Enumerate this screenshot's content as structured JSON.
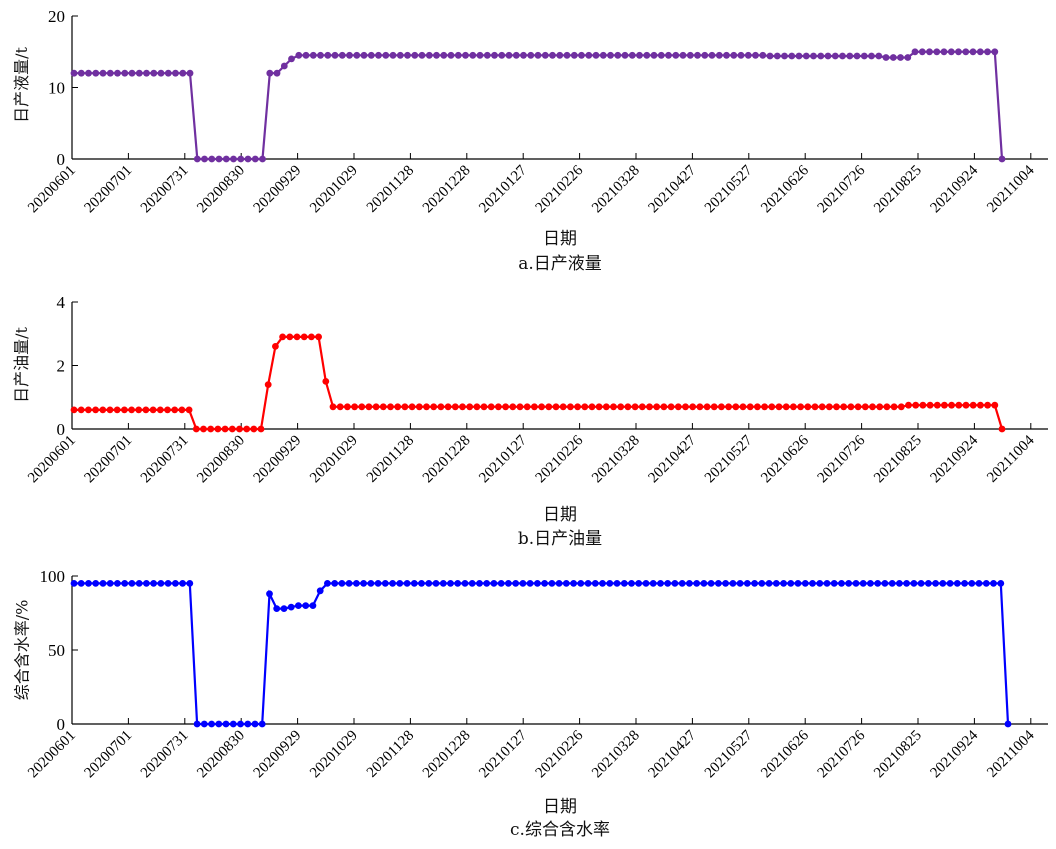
{
  "chart_data": [
    {
      "type": "line",
      "caption": "a.日产液量",
      "xlabel": "日期",
      "ylabel": "日产液量/t",
      "ylim": [
        0,
        20
      ],
      "yticks": [
        0,
        10,
        20
      ],
      "xticks": [
        "20200601",
        "20200701",
        "20200731",
        "20200830",
        "20200929",
        "20201029",
        "20201128",
        "20201228",
        "20210127",
        "20210226",
        "20210328",
        "20210427",
        "20210527",
        "20210626",
        "20210726",
        "20210825",
        "20210924",
        "20211004"
      ],
      "color": "#7030a0",
      "series": [
        {
          "values": [
            12,
            12,
            12,
            12,
            12,
            12,
            12,
            12,
            12,
            12,
            12,
            12,
            12,
            12,
            12,
            12,
            12,
            0,
            0,
            0,
            0,
            0,
            0,
            0,
            0,
            0,
            0,
            12,
            12,
            13,
            14,
            14.5,
            14.5,
            14.5,
            14.5,
            14.5,
            14.5,
            14.5,
            14.5,
            14.5,
            14.5,
            14.5,
            14.5,
            14.5,
            14.5,
            14.5,
            14.5,
            14.5,
            14.5,
            14.5,
            14.5,
            14.5,
            14.5,
            14.5,
            14.5,
            14.5,
            14.5,
            14.5,
            14.5,
            14.5,
            14.5,
            14.5,
            14.5,
            14.5,
            14.5,
            14.5,
            14.5,
            14.5,
            14.5,
            14.5,
            14.5,
            14.5,
            14.5,
            14.5,
            14.5,
            14.5,
            14.5,
            14.5,
            14.5,
            14.5,
            14.5,
            14.5,
            14.5,
            14.5,
            14.5,
            14.5,
            14.5,
            14.5,
            14.5,
            14.5,
            14.5,
            14.5,
            14.5,
            14.5,
            14.5,
            14.5,
            14.4,
            14.4,
            14.4,
            14.4,
            14.4,
            14.4,
            14.4,
            14.4,
            14.4,
            14.4,
            14.4,
            14.4,
            14.4,
            14.4,
            14.4,
            14.4,
            14.2,
            14.2,
            14.2,
            14.2,
            15,
            15,
            15,
            15,
            15,
            15,
            15,
            15,
            15,
            15,
            15,
            15,
            0
          ]
        }
      ]
    },
    {
      "type": "line",
      "caption": "b.日产油量",
      "xlabel": "日期",
      "ylabel": "日产油量/t",
      "ylim": [
        0,
        4
      ],
      "yticks": [
        0,
        2,
        4
      ],
      "xticks": [
        "20200601",
        "20200701",
        "20200731",
        "20200830",
        "20200929",
        "20201029",
        "20201128",
        "20201228",
        "20210127",
        "20210226",
        "20210328",
        "20210427",
        "20210527",
        "20210626",
        "20210726",
        "20210825",
        "20210924",
        "20211004"
      ],
      "color": "#ff0000",
      "series": [
        {
          "values": [
            0.6,
            0.6,
            0.6,
            0.6,
            0.6,
            0.6,
            0.6,
            0.6,
            0.6,
            0.6,
            0.6,
            0.6,
            0.6,
            0.6,
            0.6,
            0.6,
            0.6,
            0,
            0,
            0,
            0,
            0,
            0,
            0,
            0,
            0,
            0,
            1.4,
            2.6,
            2.9,
            2.9,
            2.9,
            2.9,
            2.9,
            2.9,
            1.5,
            0.7,
            0.7,
            0.7,
            0.7,
            0.7,
            0.7,
            0.7,
            0.7,
            0.7,
            0.7,
            0.7,
            0.7,
            0.7,
            0.7,
            0.7,
            0.7,
            0.7,
            0.7,
            0.7,
            0.7,
            0.7,
            0.7,
            0.7,
            0.7,
            0.7,
            0.7,
            0.7,
            0.7,
            0.7,
            0.7,
            0.7,
            0.7,
            0.7,
            0.7,
            0.7,
            0.7,
            0.7,
            0.7,
            0.7,
            0.7,
            0.7,
            0.7,
            0.7,
            0.7,
            0.7,
            0.7,
            0.7,
            0.7,
            0.7,
            0.7,
            0.7,
            0.7,
            0.7,
            0.7,
            0.7,
            0.7,
            0.7,
            0.7,
            0.7,
            0.7,
            0.7,
            0.7,
            0.7,
            0.7,
            0.7,
            0.7,
            0.7,
            0.7,
            0.7,
            0.7,
            0.7,
            0.7,
            0.7,
            0.7,
            0.7,
            0.7,
            0.7,
            0.7,
            0.7,
            0.7,
            0.75,
            0.75,
            0.75,
            0.75,
            0.75,
            0.75,
            0.75,
            0.75,
            0.75,
            0.75,
            0.75,
            0.75,
            0.75,
            0
          ]
        }
      ]
    },
    {
      "type": "line",
      "caption": "c.综合含水率",
      "xlabel": "日期",
      "ylabel": "综合含水率/%",
      "ylim": [
        0,
        100
      ],
      "yticks": [
        0,
        50,
        100
      ],
      "xticks": [
        "20200601",
        "20200701",
        "20200731",
        "20200830",
        "20200929",
        "20201029",
        "20201128",
        "20201228",
        "20210127",
        "20210226",
        "20210328",
        "20210427",
        "20210527",
        "20210626",
        "20210726",
        "20210825",
        "20210924",
        "20211004"
      ],
      "color": "#0000ff",
      "series": [
        {
          "values": [
            95,
            95,
            95,
            95,
            95,
            95,
            95,
            95,
            95,
            95,
            95,
            95,
            95,
            95,
            95,
            95,
            95,
            0,
            0,
            0,
            0,
            0,
            0,
            0,
            0,
            0,
            0,
            88,
            78,
            78,
            79,
            80,
            80,
            80,
            90,
            95,
            95,
            95,
            95,
            95,
            95,
            95,
            95,
            95,
            95,
            95,
            95,
            95,
            95,
            95,
            95,
            95,
            95,
            95,
            95,
            95,
            95,
            95,
            95,
            95,
            95,
            95,
            95,
            95,
            95,
            95,
            95,
            95,
            95,
            95,
            95,
            95,
            95,
            95,
            95,
            95,
            95,
            95,
            95,
            95,
            95,
            95,
            95,
            95,
            95,
            95,
            95,
            95,
            95,
            95,
            95,
            95,
            95,
            95,
            95,
            95,
            95,
            95,
            95,
            95,
            95,
            95,
            95,
            95,
            95,
            95,
            95,
            95,
            95,
            95,
            95,
            95,
            95,
            95,
            95,
            95,
            95,
            95,
            95,
            95,
            95,
            95,
            95,
            95,
            95,
            95,
            95,
            95,
            95,
            0
          ]
        }
      ]
    }
  ]
}
